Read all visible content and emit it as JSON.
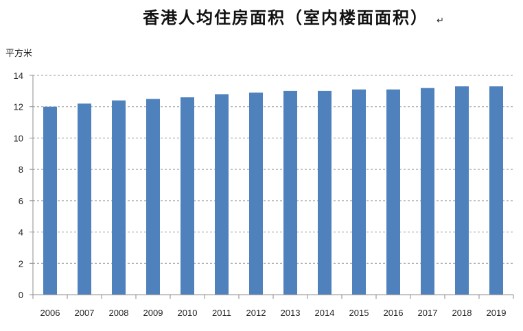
{
  "chart_data": {
    "type": "bar",
    "title": "香港人均住房面积（室内楼面面积）",
    "title_mark": "↵",
    "ylabel": "平方米",
    "xlabel": "",
    "ylim": [
      0,
      14
    ],
    "yticks": [
      0,
      2,
      4,
      6,
      8,
      10,
      12,
      14
    ],
    "grid": true,
    "legend": "none",
    "bar_color": "#4f81bd",
    "categories": [
      "2006",
      "2007",
      "2008",
      "2009",
      "2010",
      "2011",
      "2012",
      "2013",
      "2014",
      "2015",
      "2016",
      "2017",
      "2018",
      "2019"
    ],
    "values": [
      12.0,
      12.2,
      12.4,
      12.5,
      12.6,
      12.8,
      12.9,
      13.0,
      13.0,
      13.1,
      13.1,
      13.2,
      13.3,
      13.3
    ]
  }
}
